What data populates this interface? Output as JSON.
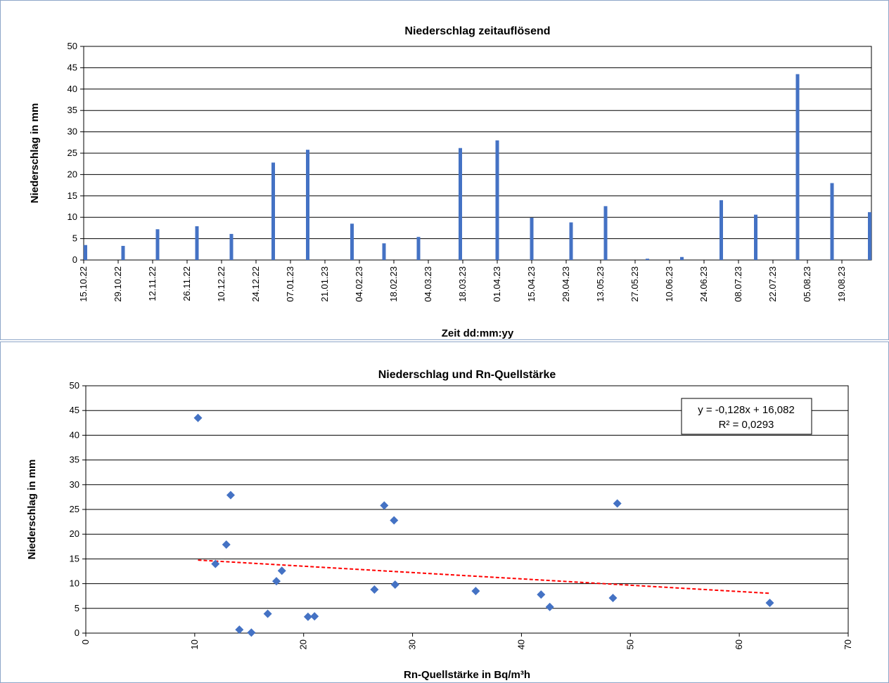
{
  "chart_data": [
    {
      "type": "bar",
      "title": "Niederschlag zeitauflösend",
      "xlabel": "Zeit dd:mm:yy",
      "ylabel": "Niederschlag in mm",
      "ylim": [
        0,
        50
      ],
      "yticks": [
        0,
        5,
        10,
        15,
        20,
        25,
        30,
        35,
        40,
        45,
        50
      ],
      "xtick_labels": [
        "15.10.22",
        "29.10.22",
        "12.11.22",
        "26.11.22",
        "10.12.22",
        "24.12.22",
        "07.01.23",
        "21.01.23",
        "04.02.23",
        "18.02.23",
        "04.03.23",
        "18.03.23",
        "01.04.23",
        "15.04.23",
        "29.04.23",
        "13.05.23",
        "27.05.23",
        "10.06.23",
        "24.06.23",
        "08.07.23",
        "22.07.23",
        "05.08.23",
        "19.08.23"
      ],
      "x_start": "15.10.22",
      "x_end": "31.08.23",
      "grid": true,
      "color": "#4472c4",
      "x": [
        "15.10.22",
        "31.10.22",
        "14.11.22",
        "30.11.22",
        "14.12.22",
        "31.12.22",
        "14.01.23",
        "01.02.23",
        "14.02.23",
        "28.02.23",
        "17.03.23",
        "01.04.23",
        "15.04.23",
        "01.05.23",
        "15.05.23",
        "01.06.23",
        "15.06.23",
        "01.07.23",
        "15.07.23",
        "01.08.23",
        "15.08.23",
        "31.08.23"
      ],
      "values": [
        3.5,
        3.3,
        7.2,
        7.9,
        6.1,
        22.8,
        25.8,
        8.5,
        3.9,
        5.4,
        26.2,
        28.0,
        9.9,
        8.8,
        12.6,
        0.3,
        0.7,
        14.0,
        10.6,
        43.5,
        18.0,
        11.2
      ]
    },
    {
      "type": "scatter",
      "title": "Niederschlag und Rn-Quellstärke",
      "xlabel": "Rn-Quellstärke in Bq/m³h",
      "ylabel": "Niederschlag in mm",
      "xlim": [
        0,
        70
      ],
      "ylim": [
        0,
        50
      ],
      "xticks": [
        0,
        10,
        20,
        30,
        40,
        50,
        60,
        70
      ],
      "yticks": [
        0,
        5,
        10,
        15,
        20,
        25,
        30,
        35,
        40,
        45,
        50
      ],
      "grid": true,
      "color": "#4472c4",
      "points": [
        [
          10.3,
          43.5
        ],
        [
          13.3,
          27.9
        ],
        [
          12.9,
          17.9
        ],
        [
          11.9,
          14.0
        ],
        [
          14.1,
          0.7
        ],
        [
          15.2,
          0.1
        ],
        [
          16.7,
          3.9
        ],
        [
          17.5,
          10.5
        ],
        [
          18.0,
          12.6
        ],
        [
          20.4,
          3.3
        ],
        [
          21.0,
          3.4
        ],
        [
          26.5,
          8.8
        ],
        [
          27.4,
          25.8
        ],
        [
          28.3,
          22.8
        ],
        [
          28.4,
          9.8
        ],
        [
          35.8,
          8.5
        ],
        [
          41.8,
          7.8
        ],
        [
          42.6,
          5.3
        ],
        [
          48.4,
          7.1
        ],
        [
          48.8,
          26.2
        ],
        [
          62.8,
          6.1
        ]
      ],
      "trendline": {
        "slope": -0.128,
        "intercept": 16.082,
        "x_range": [
          10.3,
          62.8
        ],
        "color": "#ff0000",
        "style": "dashed",
        "equation": "y = -0,128x + 16,082",
        "r_squared": "R² = 0,0293"
      }
    }
  ]
}
